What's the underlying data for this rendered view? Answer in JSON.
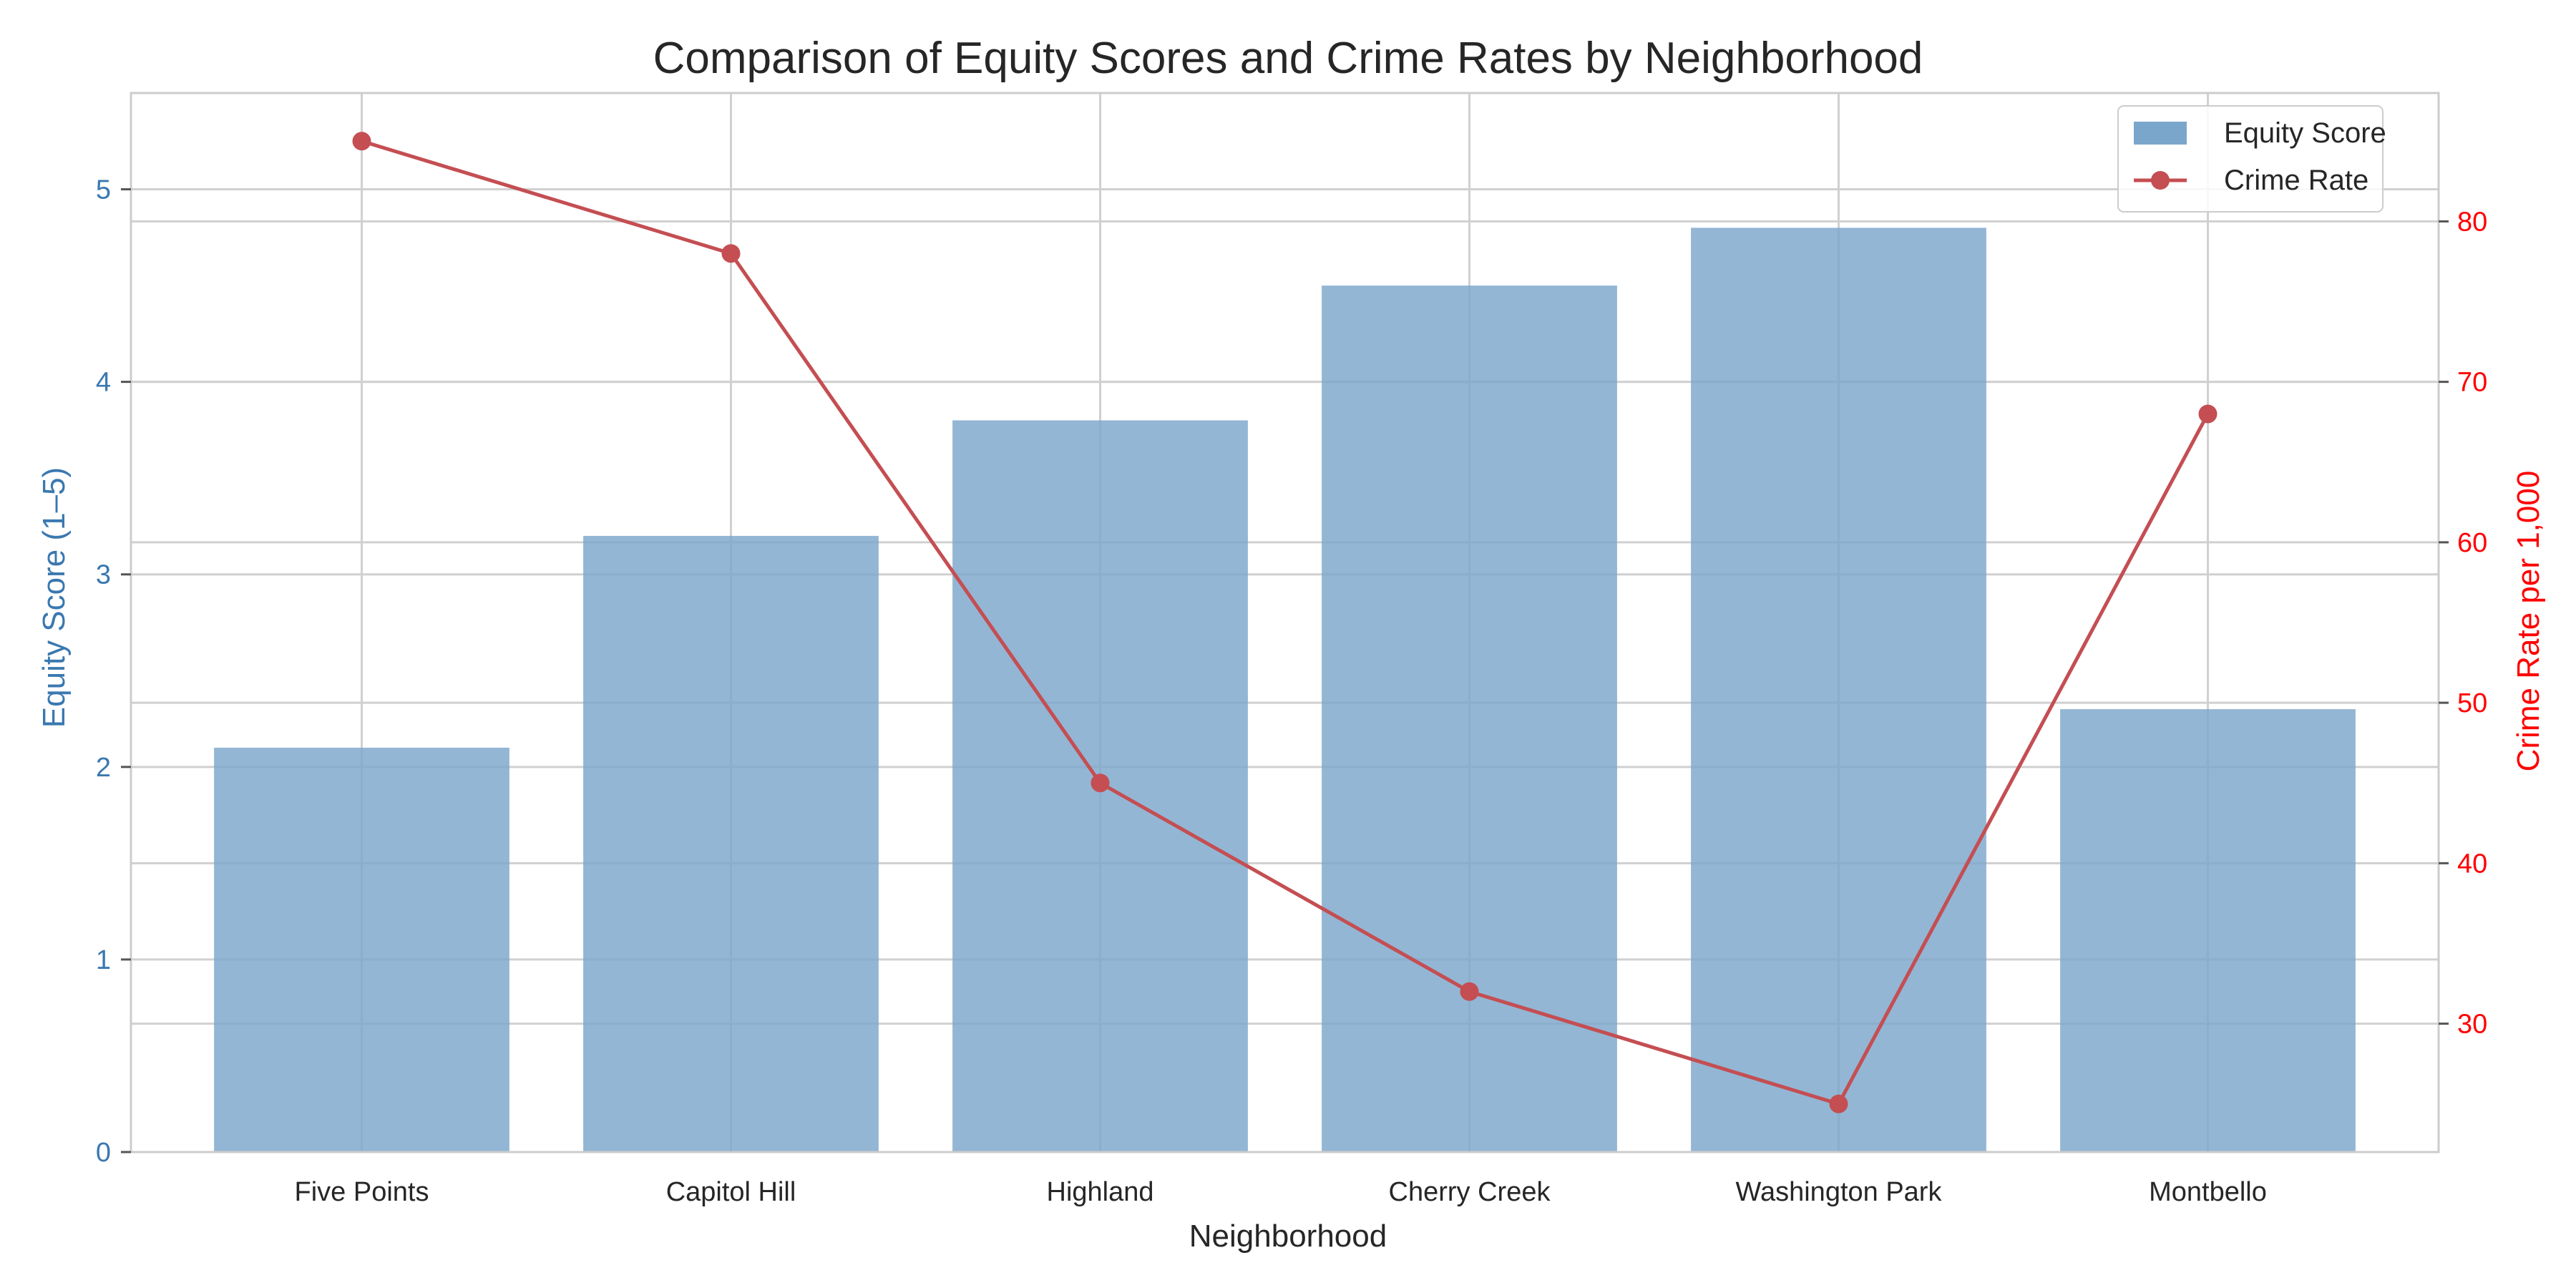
{
  "chart_data": {
    "type": "bar",
    "title": "Comparison of Equity Scores and Crime Rates by Neighborhood",
    "xlabel": "Neighborhood",
    "ylabel": "Equity Score (1–5)",
    "y2label": "Crime Rate per 1,000",
    "categories": [
      "Five Points",
      "Capitol Hill",
      "Highland",
      "Cherry Creek",
      "Washington Park",
      "Montbello"
    ],
    "series": [
      {
        "name": "Equity Score",
        "type": "bar",
        "axis": "left",
        "values": [
          2.1,
          3.2,
          3.8,
          4.5,
          4.8,
          2.3
        ],
        "color": "#7ba6cb"
      },
      {
        "name": "Crime Rate",
        "type": "line",
        "axis": "right",
        "values": [
          85,
          78,
          45,
          32,
          25,
          68
        ],
        "color": "#c44e52"
      }
    ],
    "ylim": [
      0,
      5.5
    ],
    "y2lim": [
      22,
      88
    ],
    "yticks": [
      0,
      1,
      2,
      3,
      4,
      5
    ],
    "y2ticks": [
      30,
      40,
      50,
      60,
      70,
      80
    ],
    "grid": true,
    "legend_position": "top-right",
    "colors": {
      "left_axis": "#3a78b0",
      "right_axis": "#ff0000",
      "grid": "#d0d0d0",
      "frame": "#cccccc"
    }
  }
}
